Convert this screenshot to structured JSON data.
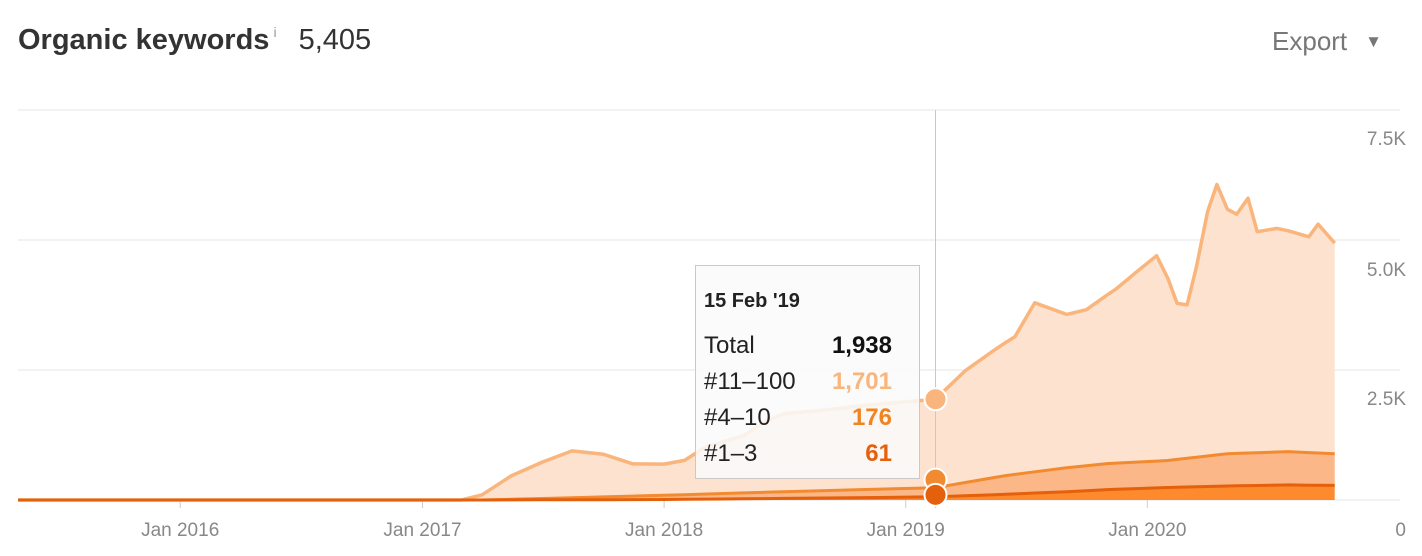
{
  "header": {
    "title": "Organic keywords",
    "info_icon": "i",
    "count": "5,405",
    "export_label": "Export",
    "export_caret": "▼"
  },
  "colors": {
    "pos_11_100": "#f9b57c",
    "pos_11_100_fill": "#fde3cf",
    "pos_4_10": "#f28a30",
    "pos_4_10_fill": "#fbb787",
    "pos_1_3": "#e5600c",
    "pos_1_3_fill": "#fd8a2c",
    "grid": "#e6e6e6",
    "crosshair": "#c8c8c8"
  },
  "tooltip": {
    "date": "15 Feb '19",
    "rows": [
      {
        "label": "Total",
        "value": "1,938",
        "color": "#111111"
      },
      {
        "label": "#11–100",
        "value": "1,701",
        "color": "#f9b57c"
      },
      {
        "label": "#4–10",
        "value": "176",
        "color": "#f08422"
      },
      {
        "label": "#1–3",
        "value": "61",
        "color": "#e5600c"
      }
    ]
  },
  "chart_data": {
    "type": "area",
    "stacked": true,
    "x_ticks": [
      "Jan 2016",
      "Jan 2017",
      "Jan 2018",
      "Jan 2019",
      "Jan 2020"
    ],
    "y_ticks": [
      "7.5K",
      "5.0K",
      "2.5K",
      "0"
    ],
    "ylim": [
      0,
      7500
    ],
    "xlim": [
      "2015-05-01",
      "2020-10-15"
    ],
    "grid": true,
    "crosshair_date": "2019-02-15",
    "series": [
      {
        "name": "#1–3",
        "points": [
          [
            "2015-05-01",
            0
          ],
          [
            "2017-04-01",
            0
          ],
          [
            "2018-01-01",
            10
          ],
          [
            "2018-07-01",
            30
          ],
          [
            "2019-02-15",
            61
          ],
          [
            "2019-06-01",
            110
          ],
          [
            "2019-09-01",
            160
          ],
          [
            "2019-11-01",
            200
          ],
          [
            "2020-02-01",
            240
          ],
          [
            "2020-05-01",
            270
          ],
          [
            "2020-08-01",
            290
          ],
          [
            "2020-10-10",
            280
          ]
        ]
      },
      {
        "name": "#4–10",
        "points": [
          [
            "2015-05-01",
            0
          ],
          [
            "2017-04-01",
            0
          ],
          [
            "2018-01-01",
            80
          ],
          [
            "2018-07-01",
            130
          ],
          [
            "2019-02-15",
            176
          ],
          [
            "2019-06-01",
            360
          ],
          [
            "2019-09-01",
            460
          ],
          [
            "2019-11-01",
            500
          ],
          [
            "2020-02-01",
            520
          ],
          [
            "2020-05-01",
            620
          ],
          [
            "2020-08-01",
            640
          ],
          [
            "2020-10-10",
            610
          ]
        ]
      },
      {
        "name": "#11–100",
        "points": [
          [
            "2015-05-01",
            0
          ],
          [
            "2017-03-01",
            0
          ],
          [
            "2017-04-01",
            100
          ],
          [
            "2017-05-15",
            450
          ],
          [
            "2017-07-01",
            700
          ],
          [
            "2017-08-15",
            900
          ],
          [
            "2017-10-01",
            820
          ],
          [
            "2017-11-15",
            620
          ],
          [
            "2018-01-01",
            600
          ],
          [
            "2018-02-01",
            660
          ],
          [
            "2018-03-01",
            880
          ],
          [
            "2018-04-01",
            1000
          ],
          [
            "2018-05-01",
            1100
          ],
          [
            "2018-06-01",
            1350
          ],
          [
            "2018-07-01",
            1500
          ],
          [
            "2018-09-01",
            1550
          ],
          [
            "2018-11-01",
            1620
          ],
          [
            "2019-02-15",
            1701
          ],
          [
            "2019-04-01",
            2150
          ],
          [
            "2019-05-15",
            2450
          ],
          [
            "2019-06-15",
            2650
          ],
          [
            "2019-07-15",
            3250
          ],
          [
            "2019-09-01",
            2950
          ],
          [
            "2019-10-01",
            3000
          ],
          [
            "2019-11-15",
            3350
          ],
          [
            "2019-12-15",
            3650
          ],
          [
            "2020-01-15",
            3950
          ],
          [
            "2020-02-01",
            3500
          ],
          [
            "2020-02-15",
            3000
          ],
          [
            "2020-03-01",
            2950
          ],
          [
            "2020-03-15",
            3650
          ],
          [
            "2020-04-01",
            4700
          ],
          [
            "2020-04-15",
            5200
          ],
          [
            "2020-05-01",
            4700
          ],
          [
            "2020-05-15",
            4600
          ],
          [
            "2020-06-01",
            4900
          ],
          [
            "2020-06-15",
            4250
          ],
          [
            "2020-07-15",
            4300
          ],
          [
            "2020-09-01",
            4150
          ],
          [
            "2020-09-15",
            4400
          ],
          [
            "2020-10-10",
            4050
          ]
        ]
      }
    ]
  }
}
